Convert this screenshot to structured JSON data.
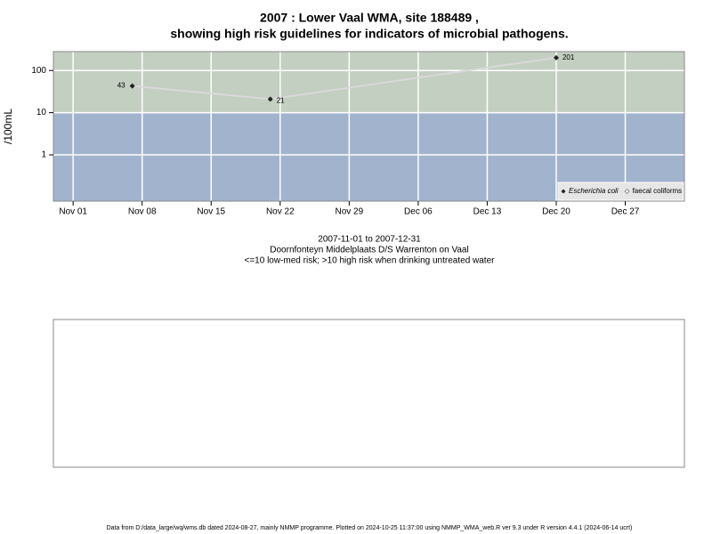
{
  "chart_data": {
    "type": "line",
    "title": [
      "2007 : Lower Vaal WMA, site 188489 ,",
      "showing high risk guidelines for indicators of microbial pathogens."
    ],
    "subtitle": [
      "2007-11-01 to 2007-12-31",
      "Doornfonteyn Middelplaats D/S Warrenton on Vaal",
      "<=10 low-med risk; >10 high risk when drinking untreated water"
    ],
    "y_label": "/100mL",
    "footer": "Data from D:/data_large/wq/wms.db dated 2024-08-27, mainly NMMP programme. Plotted on 2024-10-25 11:37:00 using NMMP_WMA_web.R ver 9.3 under R version 4.4.1 (2024-06-14 ucrt)",
    "x": [
      "Nov 07",
      "Nov 21",
      "Dec 20"
    ],
    "series": [
      {
        "name": "Escherichia coli",
        "color": "#222222",
        "line_color": "#d9d9d9",
        "values": [
          43,
          21,
          201
        ]
      },
      {
        "name": "faecal coliforms",
        "color": "#ffffff",
        "values": [
          null,
          null,
          null
        ]
      }
    ],
    "xlim": [
      "Oct 30",
      "Jan 02"
    ],
    "xticks": [
      "Nov 01",
      "Nov 08",
      "Nov 15",
      "Nov 22",
      "Nov 29",
      "Dec 06",
      "Dec 13",
      "Dec 20",
      "Dec 27"
    ],
    "ylim": [
      0.08,
      280
    ],
    "yticks": [
      1,
      10,
      100
    ],
    "log_y": true,
    "grid": true,
    "threshold": 10,
    "high_color": "#c3cfc1",
    "low_color": "#a2b4cd",
    "legend": "bottom-right"
  }
}
